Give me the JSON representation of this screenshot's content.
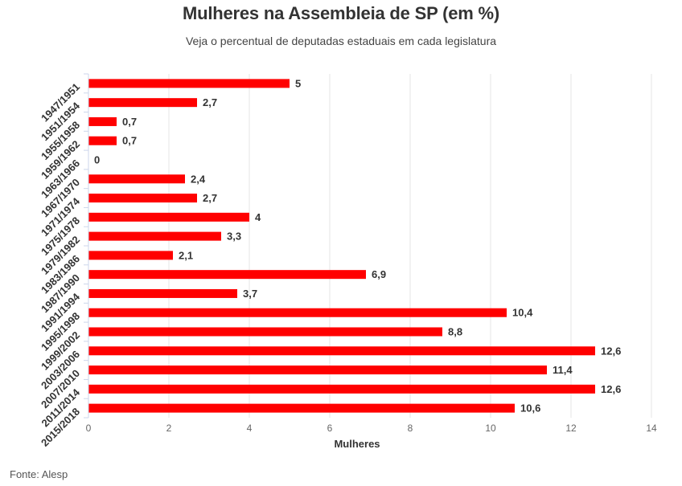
{
  "chart_data": {
    "type": "bar",
    "orientation": "horizontal",
    "title": "Mulheres na Assembleia de SP (em %)",
    "subtitle": "Veja o percentual de deputadas estaduais em cada legislatura",
    "xlabel": "Mulheres",
    "ylabel": "",
    "xlim": [
      0,
      14
    ],
    "xticks": [
      0,
      2,
      4,
      6,
      8,
      10,
      12,
      14
    ],
    "grid": "vertical",
    "bar_color": "#ff0000",
    "categories": [
      "1947/1951",
      "1951/1954",
      "1955/1958",
      "1959/1962",
      "1963/1966",
      "1967/1970",
      "1971/1974",
      "1975/1978",
      "1979/1982",
      "1983/1986",
      "1987/1990",
      "1991/1994",
      "1995/1998",
      "1999/2002",
      "2003/2006",
      "2007/2010",
      "2011/2014",
      "2015/2018"
    ],
    "values": [
      5,
      2.7,
      0.7,
      0.7,
      0,
      2.4,
      2.7,
      4,
      3.3,
      2.1,
      6.9,
      3.7,
      10.4,
      8.8,
      12.6,
      11.4,
      12.6,
      10.6
    ],
    "value_labels": [
      "5",
      "2,7",
      "0,7",
      "0,7",
      "0",
      "2,4",
      "2,7",
      "4",
      "3,3",
      "2,1",
      "6,9",
      "3,7",
      "10,4",
      "8,8",
      "12,6",
      "11,4",
      "12,6",
      "10,6"
    ]
  },
  "source": "Fonte: Alesp"
}
